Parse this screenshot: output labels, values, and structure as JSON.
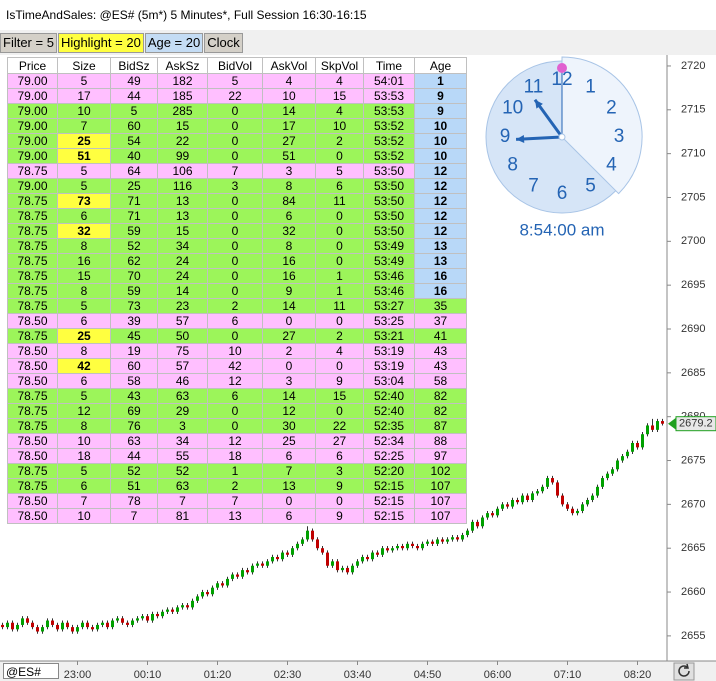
{
  "window": {
    "title": "IsTimeAndSales: @ES# (5m*) 5 Minutes*, Full Session 16:30-16:15",
    "symbol": "@ES#"
  },
  "toolbar": {
    "buttons": [
      "Filter = 5",
      "Highlight = 20",
      "Age = 20",
      "Clock"
    ],
    "colors": [
      "#d4d0c8",
      "#ffff40",
      "#c4dcf4",
      "#d4d0c8"
    ]
  },
  "table": {
    "headers": [
      "Price",
      "Size",
      "BidSz",
      "AskSz",
      "BidVol",
      "AskVol",
      "SkpVol",
      "Time",
      "Age"
    ],
    "size_highlight_min": 20,
    "age_highlight_below": 20,
    "size_color": "#ffff40",
    "age_color": "#b8d8f8",
    "rows": [
      [
        "79.00",
        "5",
        "49",
        "182",
        "5",
        "4",
        "4",
        "54:01",
        "1"
      ],
      [
        "79.00",
        "17",
        "44",
        "185",
        "22",
        "10",
        "15",
        "53:53",
        "9"
      ],
      [
        "79.00",
        "10",
        "5",
        "285",
        "0",
        "14",
        "4",
        "53:53",
        "9"
      ],
      [
        "79.00",
        "7",
        "60",
        "15",
        "0",
        "17",
        "10",
        "53:52",
        "10"
      ],
      [
        "79.00",
        "25",
        "54",
        "22",
        "0",
        "27",
        "2",
        "53:52",
        "10"
      ],
      [
        "79.00",
        "51",
        "40",
        "99",
        "0",
        "51",
        "0",
        "53:52",
        "10"
      ],
      [
        "78.75",
        "5",
        "64",
        "106",
        "7",
        "3",
        "5",
        "53:50",
        "12"
      ],
      [
        "79.00",
        "5",
        "25",
        "116",
        "3",
        "8",
        "6",
        "53:50",
        "12"
      ],
      [
        "78.75",
        "73",
        "71",
        "13",
        "0",
        "84",
        "11",
        "53:50",
        "12"
      ],
      [
        "78.75",
        "6",
        "71",
        "13",
        "0",
        "6",
        "0",
        "53:50",
        "12"
      ],
      [
        "78.75",
        "32",
        "59",
        "15",
        "0",
        "32",
        "0",
        "53:50",
        "12"
      ],
      [
        "78.75",
        "8",
        "52",
        "34",
        "0",
        "8",
        "0",
        "53:49",
        "13"
      ],
      [
        "78.75",
        "16",
        "62",
        "24",
        "0",
        "16",
        "0",
        "53:49",
        "13"
      ],
      [
        "78.75",
        "15",
        "70",
        "24",
        "0",
        "16",
        "1",
        "53:46",
        "16"
      ],
      [
        "78.75",
        "8",
        "59",
        "14",
        "0",
        "9",
        "1",
        "53:46",
        "16"
      ],
      [
        "78.75",
        "5",
        "73",
        "23",
        "2",
        "14",
        "11",
        "53:27",
        "35"
      ],
      [
        "78.50",
        "6",
        "39",
        "57",
        "6",
        "0",
        "0",
        "53:25",
        "37"
      ],
      [
        "78.75",
        "25",
        "45",
        "50",
        "0",
        "27",
        "2",
        "53:21",
        "41"
      ],
      [
        "78.50",
        "8",
        "19",
        "75",
        "10",
        "2",
        "4",
        "53:19",
        "43"
      ],
      [
        "78.50",
        "42",
        "60",
        "57",
        "42",
        "0",
        "0",
        "53:19",
        "43"
      ],
      [
        "78.50",
        "6",
        "58",
        "46",
        "12",
        "3",
        "9",
        "53:04",
        "58"
      ],
      [
        "78.75",
        "5",
        "43",
        "63",
        "6",
        "14",
        "15",
        "52:40",
        "82"
      ],
      [
        "78.75",
        "12",
        "69",
        "29",
        "0",
        "12",
        "0",
        "52:40",
        "82"
      ],
      [
        "78.75",
        "8",
        "76",
        "3",
        "0",
        "30",
        "22",
        "52:35",
        "87"
      ],
      [
        "78.50",
        "10",
        "63",
        "34",
        "12",
        "25",
        "27",
        "52:34",
        "88"
      ],
      [
        "78.50",
        "18",
        "44",
        "55",
        "18",
        "6",
        "6",
        "52:25",
        "97"
      ],
      [
        "78.75",
        "5",
        "52",
        "52",
        "1",
        "7",
        "3",
        "52:20",
        "102"
      ],
      [
        "78.75",
        "6",
        "51",
        "63",
        "2",
        "13",
        "9",
        "52:15",
        "107"
      ],
      [
        "78.50",
        "7",
        "78",
        "7",
        "7",
        "0",
        "0",
        "52:15",
        "107"
      ],
      [
        "78.50",
        "10",
        "7",
        "81",
        "13",
        "6",
        "9",
        "52:15",
        "107"
      ]
    ],
    "row_colors": [
      "#ffbfff",
      "#ffbfff",
      "#9cf55a",
      "#9cf55a",
      "#9cf55a",
      "#9cf55a",
      "#ffbfff",
      "#9cf55a",
      "#9cf55a",
      "#9cf55a",
      "#9cf55a",
      "#9cf55a",
      "#9cf55a",
      "#9cf55a",
      "#9cf55a",
      "#9cf55a",
      "#ffbfff",
      "#9cf55a",
      "#ffbfff",
      "#ffbfff",
      "#ffbfff",
      "#9cf55a",
      "#9cf55a",
      "#9cf55a",
      "#ffbfff",
      "#ffbfff",
      "#9cf55a",
      "#9cf55a",
      "#ffbfff",
      "#ffbfff"
    ]
  },
  "clock": {
    "numbers": [
      "12",
      "1",
      "2",
      "3",
      "4",
      "5",
      "6",
      "7",
      "8",
      "9",
      "10",
      "11"
    ],
    "time": "8:54:00 am",
    "color": "#2464b4"
  },
  "chart_data": {
    "type": "candlestick",
    "x_labels": [
      "23:00",
      "00:10",
      "01:20",
      "02:30",
      "03:40",
      "04:50",
      "06:00",
      "07:10",
      "08:20"
    ],
    "ylim": [
      2652.25,
      2721.25
    ],
    "yticks": [
      2655,
      2660,
      2665,
      2670,
      2675,
      2680,
      2685,
      2690,
      2695,
      2700,
      2705,
      2710,
      2715,
      2720
    ],
    "up_color": "#00a000",
    "down_color": "#c00000",
    "last_color": "#1fa01f",
    "open": [
      2656.25,
      2656,
      2656.5,
      2655.75,
      2656.25,
      2657,
      2656.5,
      2656,
      2655.5,
      2656,
      2656.75,
      2656.25,
      2655.75,
      2656.5,
      2656,
      2655.5,
      2656,
      2656.5,
      2656,
      2655.75,
      2656.25,
      2656.5,
      2656,
      2656.75,
      2657,
      2656.5,
      2656.25,
      2656.75,
      2657,
      2657.25,
      2656.75,
      2657.5,
      2657.25,
      2657.75,
      2658,
      2657.75,
      2658.25,
      2658.5,
      2658.25,
      2659,
      2659.5,
      2660,
      2659.75,
      2660.5,
      2661,
      2660.75,
      2661.5,
      2662,
      2661.75,
      2662.5,
      2662.25,
      2663,
      2663.25,
      2663,
      2663.5,
      2664,
      2663.75,
      2664.5,
      2664.25,
      2665,
      2665.5,
      2666,
      2667,
      2666,
      2665,
      2664.5,
      2663,
      2663.5,
      2662.5,
      2662.75,
      2662.25,
      2663,
      2663.5,
      2664,
      2663.75,
      2664.5,
      2664.25,
      2665,
      2664.75,
      2665,
      2665.25,
      2665,
      2665.5,
      2665.25,
      2665,
      2665.5,
      2665.75,
      2665.5,
      2666,
      2665.75,
      2666,
      2666.25,
      2666,
      2666.5,
      2667,
      2668,
      2667.5,
      2668.5,
      2669,
      2668.75,
      2669.5,
      2670,
      2669.75,
      2670.5,
      2670.25,
      2671,
      2670.5,
      2671.25,
      2671.5,
      2672,
      2673,
      2672.5,
      2671,
      2670,
      2669.5,
      2669,
      2669.25,
      2670,
      2670.5,
      2671,
      2672,
      2673,
      2673.5,
      2674,
      2675,
      2675.5,
      2676,
      2677,
      2676.5,
      2678,
      2679,
      2678.5,
      2679.5
    ],
    "high": [
      2656.5,
      2656.75,
      2656.75,
      2656.5,
      2657.25,
      2657.25,
      2656.75,
      2656.25,
      2656.25,
      2657,
      2657,
      2656.5,
      2656.75,
      2656.75,
      2656.25,
      2656.25,
      2656.75,
      2656.75,
      2656.25,
      2656.5,
      2656.75,
      2656.75,
      2657,
      2657.25,
      2657.25,
      2656.75,
      2657,
      2657.25,
      2657.5,
      2657.5,
      2657.75,
      2657.75,
      2658,
      2658.25,
      2658.25,
      2658.5,
      2658.75,
      2658.75,
      2659.25,
      2659.75,
      2660.25,
      2660.25,
      2660.75,
      2661.25,
      2661.25,
      2661.75,
      2662.25,
      2662.25,
      2662.75,
      2662.75,
      2663.25,
      2663.5,
      2663.5,
      2663.75,
      2664.25,
      2664.25,
      2664.75,
      2664.75,
      2665.25,
      2665.75,
      2666.25,
      2667.5,
      2667.25,
      2666.25,
      2665.25,
      2664.75,
      2663.75,
      2663.75,
      2663,
      2663,
      2663.25,
      2663.75,
      2664.25,
      2664.25,
      2664.75,
      2664.75,
      2665.25,
      2665.25,
      2665.25,
      2665.5,
      2665.5,
      2665.75,
      2665.75,
      2665.5,
      2665.75,
      2666,
      2666,
      2666.25,
      2666.25,
      2666.25,
      2666.5,
      2666.5,
      2666.75,
      2667.25,
      2668.25,
      2668.25,
      2668.75,
      2669.25,
      2669.25,
      2669.75,
      2670.25,
      2670.25,
      2670.75,
      2670.75,
      2671.25,
      2671.25,
      2671.5,
      2671.75,
      2672.25,
      2673.25,
      2673.25,
      2672.75,
      2671.25,
      2670.25,
      2669.75,
      2669.5,
      2670.25,
      2670.75,
      2671.25,
      2672.25,
      2673.25,
      2673.75,
      2674.25,
      2675.25,
      2675.75,
      2676.25,
      2677.25,
      2677.25,
      2678.25,
      2679.25,
      2679.75,
      2679.75,
      2679.75
    ],
    "low": [
      2655.75,
      2655.75,
      2655.5,
      2655.5,
      2656,
      2656.25,
      2655.75,
      2655.25,
      2655.25,
      2655.75,
      2656,
      2655.5,
      2655.5,
      2655.75,
      2655.25,
      2655.25,
      2655.75,
      2655.75,
      2655.5,
      2655.5,
      2656,
      2655.75,
      2655.75,
      2656.5,
      2656.25,
      2656,
      2656,
      2656.5,
      2656.75,
      2656.5,
      2656.5,
      2657,
      2657,
      2657.5,
      2657.5,
      2657.5,
      2658,
      2658,
      2658,
      2658.75,
      2659.25,
      2659.5,
      2659.5,
      2660.25,
      2660.5,
      2660.5,
      2661.25,
      2661.5,
      2661.5,
      2662,
      2662,
      2662.75,
      2662.75,
      2662.75,
      2663.25,
      2663.5,
      2663.5,
      2664,
      2664,
      2664.75,
      2665.25,
      2665.75,
      2665.75,
      2664.75,
      2664.25,
      2662.75,
      2662.75,
      2662.25,
      2662.25,
      2662,
      2662,
      2662.75,
      2663.25,
      2663.5,
      2663.5,
      2664,
      2664,
      2664.5,
      2664.5,
      2664.75,
      2664.75,
      2664.75,
      2665,
      2664.75,
      2664.75,
      2665.25,
      2665.25,
      2665.25,
      2665.5,
      2665.5,
      2665.75,
      2665.75,
      2665.75,
      2666.25,
      2666.75,
      2667.25,
      2667.25,
      2668.25,
      2668.5,
      2668.5,
      2669.25,
      2669.5,
      2669.5,
      2670,
      2670,
      2670.25,
      2670.25,
      2671,
      2671.25,
      2671.75,
      2672.25,
      2670.75,
      2669.75,
      2669.25,
      2668.75,
      2668.75,
      2669,
      2669.75,
      2670.25,
      2670.75,
      2671.75,
      2672.75,
      2673.25,
      2673.75,
      2674.75,
      2675.25,
      2675.75,
      2676.25,
      2676.25,
      2677.75,
      2678.25,
      2678.25,
      2679
    ],
    "close": [
      2656,
      2656.5,
      2655.75,
      2656.25,
      2657,
      2656.5,
      2656,
      2655.5,
      2656,
      2656.75,
      2656.25,
      2655.75,
      2656.5,
      2656,
      2655.5,
      2656,
      2656.5,
      2656,
      2655.75,
      2656.25,
      2656.5,
      2656,
      2656.75,
      2657,
      2656.5,
      2656.25,
      2656.75,
      2657,
      2657.25,
      2656.75,
      2657.5,
      2657.25,
      2657.75,
      2658,
      2657.75,
      2658.25,
      2658.5,
      2658.25,
      2659,
      2659.5,
      2660,
      2659.75,
      2660.5,
      2661,
      2660.75,
      2661.5,
      2662,
      2661.75,
      2662.5,
      2662.25,
      2663,
      2663.25,
      2663,
      2663.5,
      2664,
      2663.75,
      2664.5,
      2664.25,
      2665,
      2665.5,
      2666,
      2667,
      2666,
      2665,
      2664.5,
      2663,
      2663.5,
      2662.5,
      2662.75,
      2662.25,
      2663,
      2663.5,
      2664,
      2663.75,
      2664.5,
      2664.25,
      2665,
      2664.75,
      2665,
      2665.25,
      2665,
      2665.5,
      2665.25,
      2665,
      2665.5,
      2665.75,
      2665.5,
      2666,
      2665.75,
      2666,
      2666.25,
      2666,
      2666.5,
      2667,
      2668,
      2667.5,
      2668.5,
      2669,
      2668.75,
      2669.5,
      2670,
      2669.75,
      2670.5,
      2670.25,
      2671,
      2670.5,
      2671.25,
      2671.5,
      2672,
      2673,
      2672.5,
      2671,
      2670,
      2669.5,
      2669,
      2669.25,
      2670,
      2670.5,
      2671,
      2672,
      2673,
      2673.5,
      2674,
      2675,
      2675.5,
      2676,
      2677,
      2676.5,
      2678,
      2679,
      2678.5,
      2679.5,
      2679.2
    ]
  }
}
